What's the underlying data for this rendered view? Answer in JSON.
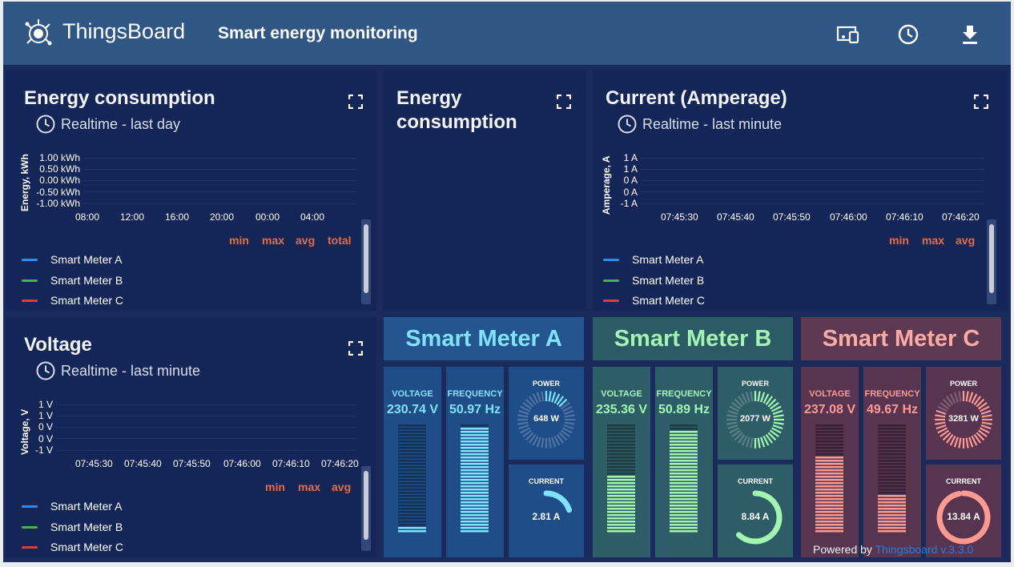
{
  "header": {
    "brand": "ThingsBoard",
    "dashboard_title": "Smart energy monitoring",
    "icons": [
      "devices-icon",
      "clock-icon",
      "download-icon"
    ]
  },
  "energy_chart": {
    "title": "Energy consumption",
    "timewindow": "Realtime - last day",
    "stats": [
      "min",
      "max",
      "avg",
      "total"
    ],
    "legend": [
      {
        "label": "Smart Meter A",
        "color": "#2d8cf0"
      },
      {
        "label": "Smart Meter B",
        "color": "#4caf50"
      },
      {
        "label": "Smart Meter C",
        "color": "#e53935"
      }
    ]
  },
  "energy_pie": {
    "title": "Energy consumption"
  },
  "current_chart": {
    "title": "Current (Amperage)",
    "timewindow": "Realtime - last minute",
    "stats": [
      "min",
      "max",
      "avg"
    ],
    "legend": [
      {
        "label": "Smart Meter A",
        "color": "#2d8cf0"
      },
      {
        "label": "Smart Meter B",
        "color": "#4caf50"
      },
      {
        "label": "Smart Meter C",
        "color": "#e53935"
      }
    ]
  },
  "voltage_chart": {
    "title": "Voltage",
    "timewindow": "Realtime - last minute",
    "stats": [
      "min",
      "max",
      "avg"
    ],
    "legend": [
      {
        "label": "Smart Meter A",
        "color": "#2d8cf0"
      },
      {
        "label": "Smart Meter B",
        "color": "#4caf50"
      },
      {
        "label": "Smart Meter C",
        "color": "#e53935"
      }
    ]
  },
  "chart_data": [
    {
      "type": "line",
      "title": "Energy consumption",
      "ylabel": "Energy, kWh",
      "y_ticks": [
        "1.00 kWh",
        "0.50 kWh",
        "0.00 kWh",
        "-0.50 kWh",
        "-1.00 kWh"
      ],
      "x_ticks": [
        "08:00",
        "12:00",
        "16:00",
        "20:00",
        "00:00",
        "04:00"
      ],
      "ylim": [
        -1,
        1
      ],
      "series": []
    },
    {
      "type": "line",
      "title": "Current (Amperage)",
      "ylabel": "Amperage, A",
      "y_ticks": [
        "1 A",
        "1 A",
        "0 A",
        "0 A",
        "-1 A"
      ],
      "x_ticks": [
        "07:45:30",
        "07:45:40",
        "07:45:50",
        "07:46:00",
        "07:46:10",
        "07:46:20"
      ],
      "ylim": [
        -1,
        1
      ],
      "series": []
    },
    {
      "type": "line",
      "title": "Voltage",
      "ylabel": "Voltage, V",
      "y_ticks": [
        "1 V",
        "1 V",
        "0 V",
        "0 V",
        "-1 V"
      ],
      "x_ticks": [
        "07:45:30",
        "07:45:40",
        "07:45:50",
        "07:46:00",
        "07:46:10",
        "07:46:20"
      ],
      "ylim": [
        -1,
        1
      ],
      "series": []
    }
  ],
  "meters": [
    {
      "name": "Smart Meter A",
      "title_color": "#7fe3ff",
      "title_bg": "#25558e",
      "tile_bg": "#1f4d88",
      "accent": "#7fe3ff",
      "voltage_label": "VOLTAGE",
      "voltage": "230.74 V",
      "voltage_fill": 0.06,
      "frequency_label": "FREQUENCY",
      "frequency": "50.97 Hz",
      "frequency_fill": 0.97,
      "power_label": "POWER",
      "power": "648 W",
      "power_fill": 0.16,
      "current_label": "CURRENT",
      "current": "2.81 A",
      "current_fill": 0.2
    },
    {
      "name": "Smart Meter B",
      "title_color": "#a3f5b0",
      "title_bg": "#2b5c66",
      "tile_bg": "#2d5d66",
      "accent": "#a3f5b0",
      "voltage_label": "VOLTAGE",
      "voltage": "235.36 V",
      "voltage_fill": 0.53,
      "frequency_label": "FREQUENCY",
      "frequency": "50.89 Hz",
      "frequency_fill": 0.93,
      "power_label": "POWER",
      "power": "2077 W",
      "power_fill": 0.52,
      "current_label": "CURRENT",
      "current": "8.84 A",
      "current_fill": 0.62
    },
    {
      "name": "Smart Meter C",
      "title_color": "#ffaaa2",
      "title_bg": "#5d3a52",
      "tile_bg": "#573450",
      "accent": "#ff9a92",
      "voltage_label": "VOLTAGE",
      "voltage": "237.08 V",
      "voltage_fill": 0.7,
      "frequency_label": "FREQUENCY",
      "frequency": "49.67 Hz",
      "frequency_fill": 0.34,
      "power_label": "POWER",
      "power": "3281 W",
      "power_fill": 0.82,
      "current_label": "CURRENT",
      "current": "13.84 A",
      "current_fill": 0.97
    }
  ],
  "footer": {
    "powered_by": "Powered by",
    "link": "Thingsboard v.3.3.0"
  }
}
